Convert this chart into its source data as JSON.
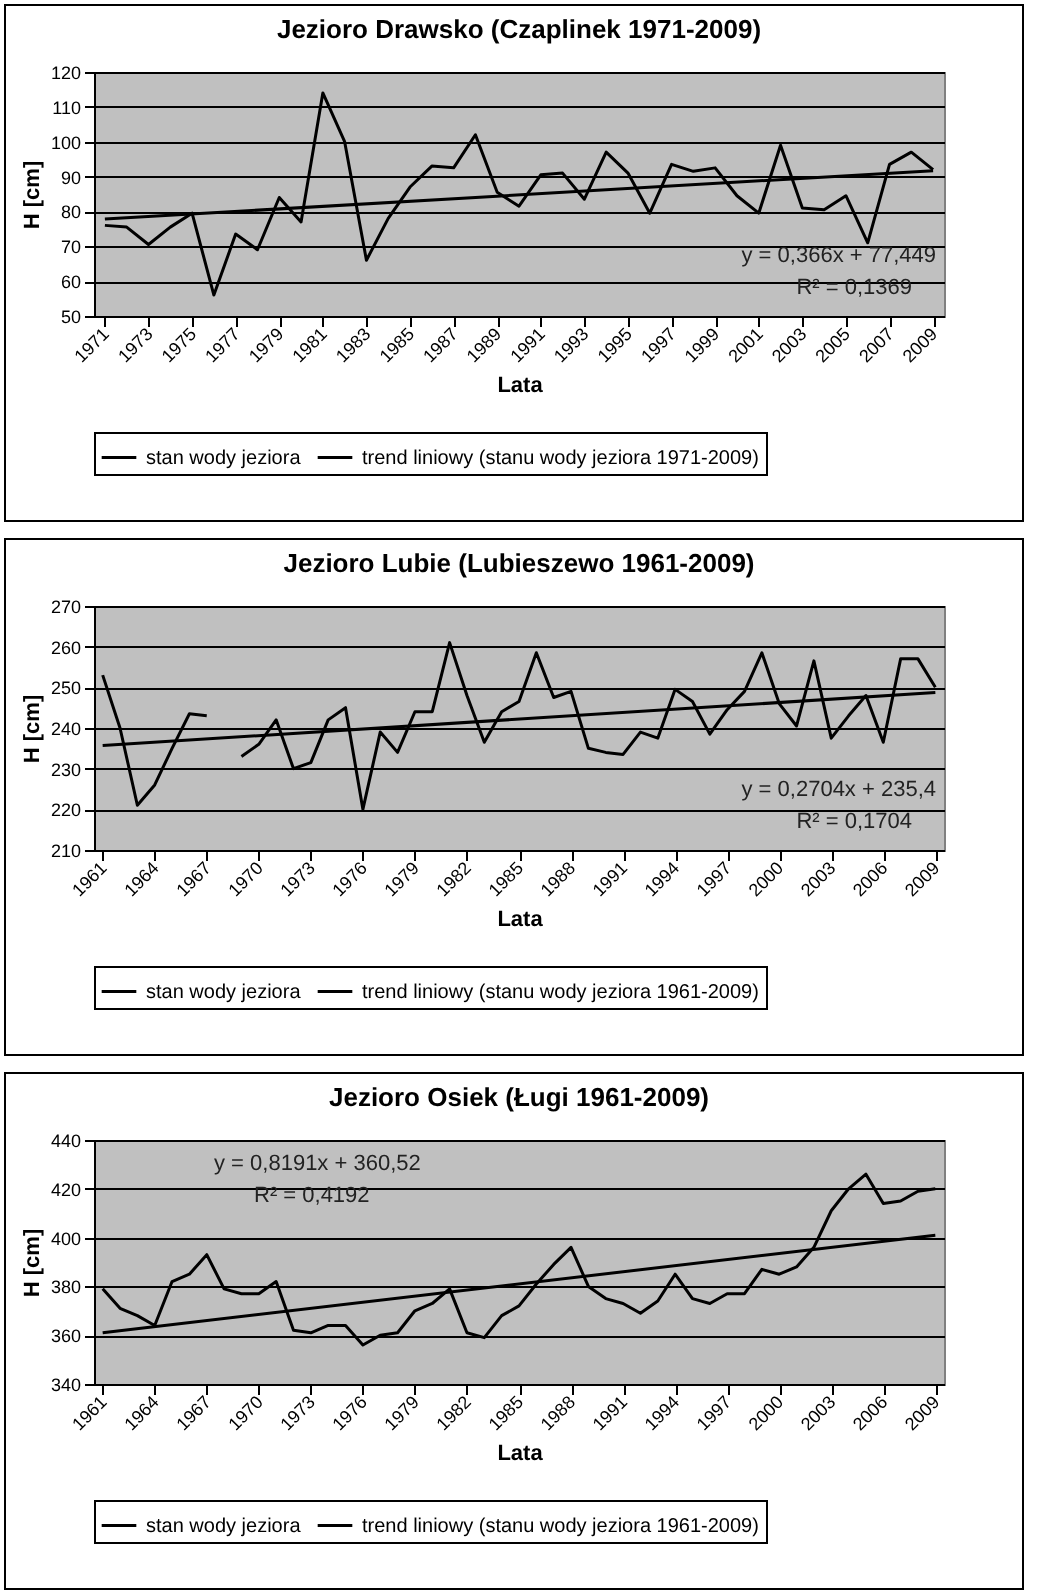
{
  "chart_data": [
    {
      "type": "line",
      "title": "Jezioro Drawsko (Czaplinek 1971-2009)",
      "xlabel": "Lata",
      "ylabel": "H [cm]",
      "series": [
        {
          "name": "stan wody jeziora",
          "color": "#000000",
          "type": "line",
          "x": [
            1971,
            1972,
            1973,
            1974,
            1975,
            1976,
            1977,
            1978,
            1979,
            1980,
            1981,
            1982,
            1983,
            1984,
            1985,
            1986,
            1987,
            1988,
            1989,
            1990,
            1991,
            1992,
            1993,
            1994,
            1995,
            1996,
            1997,
            1998,
            1999,
            2000,
            2001,
            2002,
            2003,
            2004,
            2005,
            2006,
            2007,
            2008,
            2009
          ],
          "values": [
            76,
            75.5,
            70.5,
            75.5,
            79.5,
            56,
            73.5,
            69,
            84,
            77,
            114,
            100,
            66,
            78,
            87,
            93,
            92.5,
            102,
            85.5,
            81.5,
            90.5,
            91,
            83.5,
            97,
            91,
            79.5,
            93.5,
            91.5,
            92.5,
            84.5,
            79.5,
            99,
            81,
            80.5,
            84.5,
            71,
            93.5,
            97,
            92
          ]
        },
        {
          "name": "trend liniowy (stanu wody jeziora 1971-2009)",
          "color": "#000000",
          "type": "line",
          "x": [
            1971,
            2009
          ],
          "values": [
            77.8,
            91.7
          ]
        }
      ],
      "xlim": [
        1970.5,
        2009.5
      ],
      "xticks": [
        1971,
        1973,
        1975,
        1977,
        1979,
        1981,
        1983,
        1985,
        1987,
        1989,
        1991,
        1993,
        1995,
        1997,
        1999,
        2001,
        2003,
        2005,
        2007,
        2009
      ],
      "ylim": [
        50,
        120
      ],
      "yticks": [
        50,
        60,
        70,
        80,
        90,
        100,
        110,
        120
      ],
      "grid": "y",
      "legend": "bottom",
      "annotations": [
        "y = 0,366x + 77,449",
        "R² = 0,1369"
      ]
    },
    {
      "type": "line",
      "title": "Jezioro Lubie (Lubieszewo 1961-2009)",
      "xlabel": "Lata",
      "ylabel": "H [cm]",
      "series": [
        {
          "name": "stan wody jeziora",
          "color": "#000000",
          "type": "line",
          "x": [
            1961,
            1962,
            1963,
            1964,
            1965,
            1966,
            1967,
            1968,
            1969,
            1970,
            1971,
            1972,
            1973,
            1974,
            1975,
            1976,
            1977,
            1978,
            1979,
            1980,
            1981,
            1982,
            1983,
            1984,
            1985,
            1986,
            1987,
            1988,
            1989,
            1990,
            1991,
            1992,
            1993,
            1994,
            1995,
            1996,
            1997,
            1998,
            1999,
            2000,
            2001,
            2002,
            2003,
            2004,
            2005,
            2006,
            2007,
            2008,
            2009
          ],
          "values": [
            253,
            240,
            221,
            226,
            235,
            243.5,
            243,
            null,
            233,
            236,
            242,
            230,
            231.5,
            242,
            245,
            220,
            239,
            234,
            244,
            244,
            261,
            248,
            236.5,
            244,
            246.5,
            258.5,
            247.5,
            249,
            235,
            234,
            233.5,
            239,
            237.5,
            249.5,
            246.5,
            238.5,
            244.5,
            249,
            258.5,
            246,
            240.5,
            256.5,
            237.5,
            243,
            248,
            236.5,
            257,
            257,
            250
          ]
        },
        {
          "name": "trend liniowy (stanu wody jeziora 1961-2009)",
          "color": "#000000",
          "type": "line",
          "x": [
            1961,
            2009
          ],
          "values": [
            235.7,
            248.7
          ]
        }
      ],
      "xlim": [
        1960.5,
        2009.5
      ],
      "xticks": [
        1961,
        1964,
        1967,
        1970,
        1973,
        1976,
        1979,
        1982,
        1985,
        1988,
        1991,
        1994,
        1997,
        2000,
        2003,
        2006,
        2009
      ],
      "ylim": [
        210,
        270
      ],
      "yticks": [
        210,
        220,
        230,
        240,
        250,
        260,
        270
      ],
      "grid": "y",
      "legend": "bottom",
      "annotations": [
        "y = 0,2704x + 235,4",
        "R² = 0,1704"
      ]
    },
    {
      "type": "line",
      "title": "Jezioro Osiek (Ługi 1961-2009)",
      "xlabel": "Lata",
      "ylabel": "H [cm]",
      "series": [
        {
          "name": "stan wody jeziora",
          "color": "#000000",
          "type": "line",
          "x": [
            1961,
            1962,
            1963,
            1964,
            1965,
            1966,
            1967,
            1968,
            1969,
            1970,
            1971,
            1972,
            1973,
            1974,
            1975,
            1976,
            1977,
            1978,
            1979,
            1980,
            1981,
            1982,
            1983,
            1984,
            1985,
            1986,
            1987,
            1988,
            1989,
            1990,
            1991,
            1992,
            1993,
            1994,
            1995,
            1996,
            1997,
            1998,
            1999,
            2000,
            2001,
            2002,
            2003,
            2004,
            2005,
            2006,
            2007,
            2008,
            2009
          ],
          "values": [
            379,
            371,
            368,
            364,
            382,
            385,
            393,
            379,
            377,
            377,
            382,
            362,
            361,
            364,
            364,
            356,
            360,
            361,
            370,
            373,
            379,
            361,
            359,
            368,
            372,
            381,
            389,
            396,
            380,
            375,
            373,
            369,
            374,
            385,
            375,
            373,
            377,
            377,
            387,
            385,
            388,
            396,
            411,
            420,
            426,
            414,
            415,
            419,
            420
          ]
        },
        {
          "name": "trend liniowy (stanu wody jeziora 1961-2009)",
          "color": "#000000",
          "type": "line",
          "x": [
            1961,
            2009
          ],
          "values": [
            361,
            401
          ]
        }
      ],
      "xlim": [
        1960.5,
        2009.5
      ],
      "xticks": [
        1961,
        1964,
        1967,
        1970,
        1973,
        1976,
        1979,
        1982,
        1985,
        1988,
        1991,
        1994,
        1997,
        2000,
        2003,
        2006,
        2009
      ],
      "ylim": [
        340,
        440
      ],
      "yticks": [
        340,
        360,
        380,
        400,
        420,
        440
      ],
      "grid": "y",
      "legend": "bottom",
      "annotations": [
        "y = 0,8191x + 360,52",
        "R² = 0,4192"
      ]
    }
  ]
}
